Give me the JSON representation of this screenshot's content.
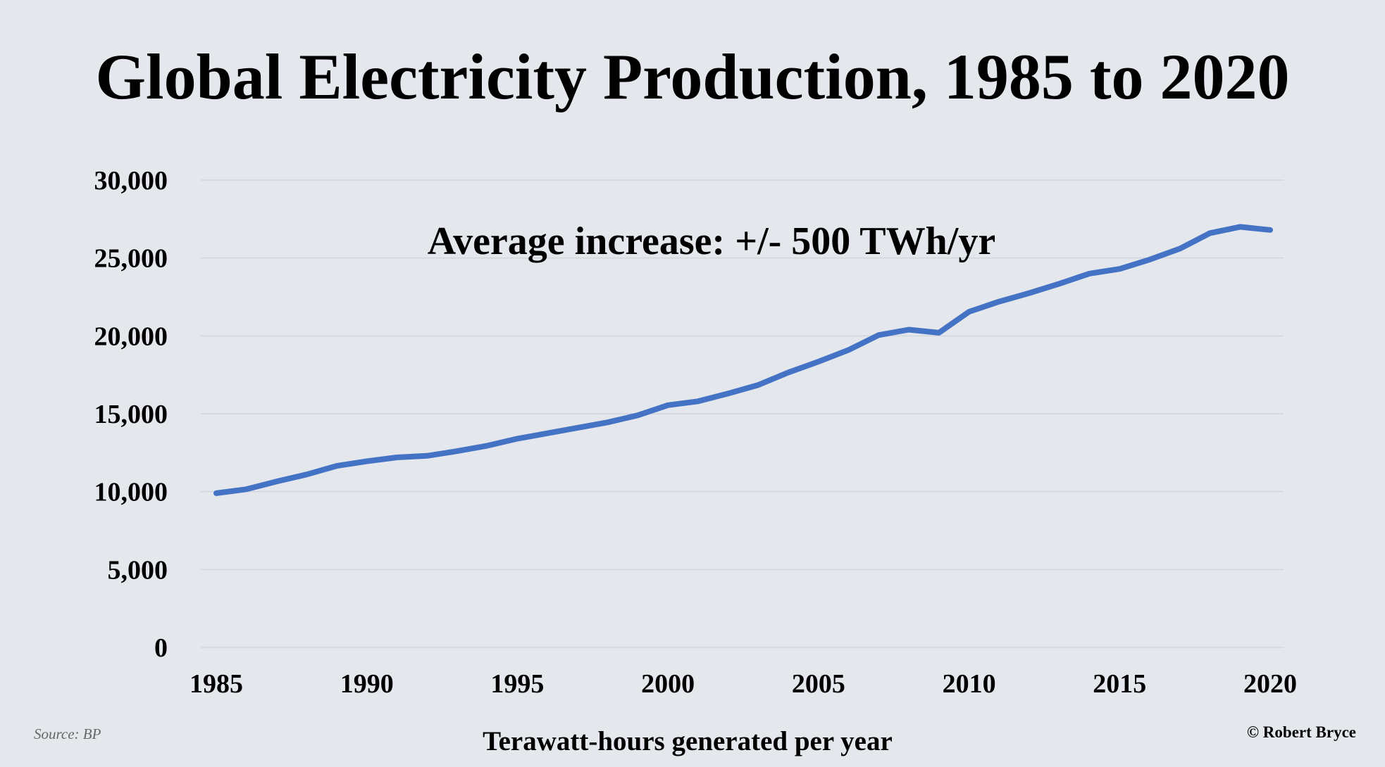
{
  "chart_data": {
    "type": "line",
    "title": "Global Electricity Production, 1985 to 2020",
    "xlabel": "Terawatt-hours generated per year",
    "ylabel": "",
    "annotation": "Average increase: +/- 500 TWh/yr",
    "source": "Source: BP",
    "credit": "© Robert Bryce",
    "x": [
      1985,
      1986,
      1987,
      1988,
      1989,
      1990,
      1991,
      1992,
      1993,
      1994,
      1995,
      1996,
      1997,
      1998,
      1999,
      2000,
      2001,
      2002,
      2003,
      2004,
      2005,
      2006,
      2007,
      2008,
      2009,
      2010,
      2011,
      2012,
      2013,
      2014,
      2015,
      2016,
      2017,
      2018,
      2019,
      2020
    ],
    "series": [
      {
        "values": [
          9900,
          10150,
          10650,
          11100,
          11650,
          11950,
          12200,
          12300,
          12600,
          12950,
          13400,
          13750,
          14100,
          14450,
          14900,
          15550,
          15800,
          16300,
          16850,
          17650,
          18350,
          19100,
          20050,
          20400,
          20200,
          21550,
          22200,
          22750,
          23350,
          24000,
          24300,
          24900,
          25600,
          26600,
          27000,
          26800
        ],
        "color": "#4472c4"
      }
    ],
    "xticks": [
      1985,
      1990,
      1995,
      2000,
      2005,
      2010,
      2015,
      2020
    ],
    "xtick_labels": [
      "1985",
      "1990",
      "1995",
      "2000",
      "2005",
      "2010",
      "2015",
      "2020"
    ],
    "yticks": [
      0,
      5000,
      10000,
      15000,
      20000,
      25000,
      30000
    ],
    "ytick_labels": [
      "0",
      "5,000",
      "10,000",
      "15,000",
      "20,000",
      "25,000",
      "30,000"
    ],
    "xlim": [
      1985,
      2020
    ],
    "ylim": [
      0,
      30000
    ],
    "grid": true,
    "legend": "none"
  }
}
